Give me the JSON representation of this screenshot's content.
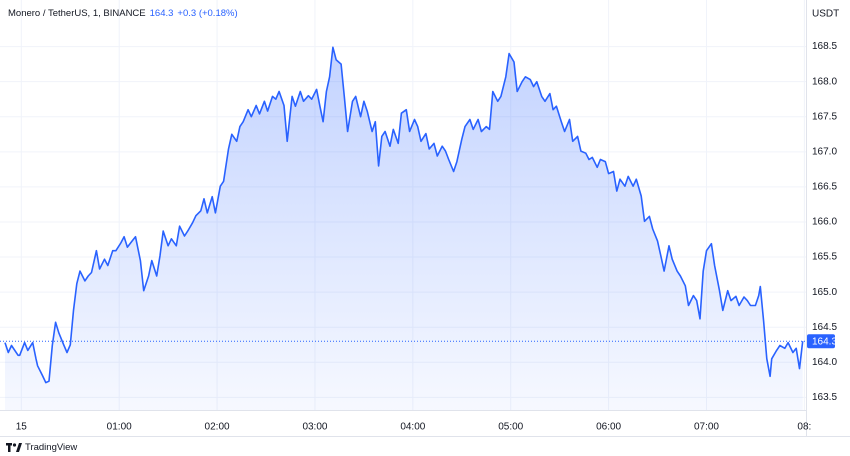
{
  "chart_data": {
    "type": "area",
    "title": "Monero / TetherUS, 1, BINANCE",
    "last_price": 164.3,
    "change": "+0.3 (+0.18%)",
    "y_label": "USDT",
    "brand": "TradingView",
    "color": "#2962ff",
    "grid": true,
    "x": [
      -10,
      -8,
      -6,
      -2,
      -1,
      2,
      4,
      7,
      9,
      10,
      13,
      15,
      17,
      19,
      21,
      23,
      26,
      28,
      30,
      32,
      34,
      36,
      39,
      41,
      43,
      46,
      48,
      51,
      53,
      56,
      58,
      61,
      63,
      65,
      68,
      70,
      73,
      75,
      78,
      80,
      83,
      85,
      87,
      90,
      92,
      95,
      97,
      100,
      102,
      105,
      107,
      110,
      112,
      114,
      117,
      119,
      122,
      124,
      127,
      129,
      132,
      134,
      136,
      139,
      141,
      144,
      146,
      149,
      151,
      154,
      156,
      158,
      161,
      163,
      166,
      168,
      171,
      173,
      176,
      178,
      181,
      183,
      185,
      187,
      189,
      191,
      193,
      196,
      198,
      200,
      203,
      205,
      208,
      210,
      212,
      215,
      217,
      219,
      221,
      223,
      226,
      228,
      231,
      233,
      236,
      238,
      241,
      243,
      245,
      248,
      250,
      253,
      255,
      258,
      260,
      262,
      265,
      267,
      270,
      272,
      275,
      277,
      280,
      282,
      285,
      287,
      289,
      292,
      294,
      297,
      299,
      302,
      304,
      307,
      309,
      312,
      314,
      316,
      319,
      321,
      324,
      326,
      328,
      331,
      333,
      336,
      338,
      341,
      343,
      346,
      348,
      350,
      353,
      355,
      358,
      360,
      363,
      365,
      367,
      370,
      372,
      375,
      377,
      380,
      382,
      385,
      387,
      390,
      392,
      394,
      397,
      399,
      402,
      404,
      407,
      409,
      412,
      414,
      416,
      418,
      420,
      423,
      425,
      428,
      430,
      433,
      435,
      438,
      440,
      443,
      445,
      447,
      450,
      452,
      453,
      455,
      457,
      459,
      460,
      463,
      465,
      468,
      470,
      473,
      475,
      477,
      479
    ],
    "values": [
      164.28,
      164.14,
      164.24,
      164.1,
      164.1,
      164.28,
      164.17,
      164.28,
      164.05,
      163.95,
      163.81,
      163.71,
      163.73,
      164.24,
      164.57,
      164.42,
      164.25,
      164.14,
      164.25,
      164.74,
      165.12,
      165.3,
      165.16,
      165.23,
      165.28,
      165.59,
      165.33,
      165.47,
      165.38,
      165.59,
      165.59,
      165.7,
      165.79,
      165.64,
      165.73,
      165.79,
      165.45,
      165.02,
      165.23,
      165.45,
      165.23,
      165.52,
      165.87,
      165.66,
      165.76,
      165.66,
      165.94,
      165.8,
      165.87,
      165.99,
      166.09,
      166.16,
      166.33,
      166.13,
      166.36,
      166.13,
      166.51,
      166.58,
      167.04,
      167.25,
      167.15,
      167.36,
      167.43,
      167.6,
      167.5,
      167.66,
      167.54,
      167.72,
      167.58,
      167.79,
      167.75,
      167.86,
      167.66,
      167.15,
      167.79,
      167.65,
      167.86,
      167.72,
      167.8,
      167.75,
      167.89,
      167.65,
      167.43,
      167.86,
      168.07,
      168.49,
      168.31,
      168.25,
      167.79,
      167.29,
      167.72,
      167.79,
      167.5,
      167.72,
      167.58,
      167.29,
      167.43,
      166.8,
      167.22,
      167.29,
      167.08,
      167.32,
      167.12,
      167.55,
      167.6,
      167.29,
      167.46,
      167.36,
      167.15,
      167.26,
      167.04,
      167.12,
      166.94,
      167.08,
      167.01,
      166.89,
      166.72,
      166.86,
      167.18,
      167.36,
      167.46,
      167.32,
      167.46,
      167.29,
      167.36,
      167.32,
      167.86,
      167.72,
      167.79,
      168.07,
      168.4,
      168.28,
      167.86,
      168.0,
      168.07,
      168.03,
      167.93,
      168.0,
      167.79,
      167.72,
      167.83,
      167.6,
      167.65,
      167.43,
      167.29,
      167.46,
      167.15,
      167.22,
      167.01,
      166.98,
      166.89,
      166.92,
      166.78,
      166.89,
      166.86,
      166.69,
      166.72,
      166.44,
      166.61,
      166.51,
      166.65,
      166.51,
      166.61,
      166.37,
      166.01,
      166.08,
      165.9,
      165.73,
      165.52,
      165.3,
      165.66,
      165.47,
      165.3,
      165.23,
      165.09,
      164.81,
      164.95,
      164.88,
      164.62,
      165.3,
      165.59,
      165.69,
      165.38,
      165.02,
      164.74,
      165.02,
      164.88,
      164.94,
      164.81,
      164.93,
      164.88,
      164.81,
      164.81,
      164.95,
      165.08,
      164.59,
      164.05,
      163.8,
      164.05,
      164.17,
      164.24,
      164.2,
      164.28,
      164.14,
      164.2,
      163.91,
      164.3
    ],
    "xlim": [
      -10,
      481
    ],
    "xticks": [
      {
        "value": 0,
        "label": "15"
      },
      {
        "value": 60,
        "label": "01:00"
      },
      {
        "value": 120,
        "label": "02:00"
      },
      {
        "value": 180,
        "label": "03:00"
      },
      {
        "value": 240,
        "label": "04:00"
      },
      {
        "value": 300,
        "label": "05:00"
      },
      {
        "value": 360,
        "label": "06:00"
      },
      {
        "value": 420,
        "label": "07:00"
      },
      {
        "value": 480,
        "label": "08:"
      }
    ],
    "ylim": [
      163.32,
      169.05
    ],
    "yticks": [
      163.5,
      {
        "value": 164,
        "label": "164.0"
      },
      164.5,
      {
        "value": 165,
        "label": "165.0"
      },
      165.5,
      {
        "value": 166,
        "label": "166.0"
      },
      166.5,
      {
        "value": 167,
        "label": "167.0"
      },
      167.5,
      {
        "value": 168,
        "label": "168.0"
      },
      168.5
    ]
  }
}
